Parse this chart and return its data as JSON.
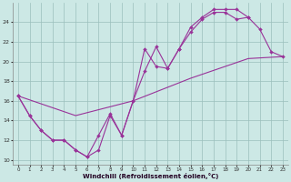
{
  "xlabel": "Windchill (Refroidissement éolien,°C)",
  "bg_color": "#cce8e5",
  "grid_color": "#9bbfbc",
  "line_color": "#993399",
  "xlim": [
    -0.5,
    23.5
  ],
  "ylim": [
    9.5,
    26.0
  ],
  "xticks": [
    0,
    1,
    2,
    3,
    4,
    5,
    6,
    7,
    8,
    9,
    10,
    11,
    12,
    13,
    14,
    15,
    16,
    17,
    18,
    19,
    20,
    21,
    22,
    23
  ],
  "yticks": [
    10,
    12,
    14,
    16,
    18,
    20,
    22,
    24
  ],
  "curve1_x": [
    0,
    1,
    2,
    3,
    4,
    5,
    6,
    7,
    8,
    9,
    10,
    11,
    12,
    13,
    14,
    15,
    16,
    17,
    18,
    19,
    20,
    21,
    22,
    23
  ],
  "curve1_y": [
    16.5,
    14.5,
    13.0,
    12.0,
    12.0,
    11.0,
    10.3,
    12.5,
    14.7,
    12.5,
    16.0,
    21.3,
    19.5,
    19.3,
    21.3,
    23.5,
    24.5,
    25.3,
    25.3,
    25.3,
    24.5,
    null,
    null,
    null
  ],
  "curve2_x": [
    0,
    1,
    2,
    3,
    4,
    5,
    6,
    7,
    8,
    9,
    10,
    11,
    12,
    13,
    14,
    15,
    16,
    17,
    18,
    19,
    20,
    21,
    22,
    23
  ],
  "curve2_y": [
    16.5,
    14.5,
    13.0,
    12.0,
    12.0,
    11.0,
    10.3,
    11.0,
    14.5,
    12.5,
    16.0,
    19.0,
    21.5,
    19.3,
    21.3,
    23.0,
    24.3,
    25.0,
    25.0,
    24.3,
    24.5,
    23.3,
    21.0,
    20.5
  ],
  "curve3_x": [
    0,
    5,
    10,
    15,
    20,
    23
  ],
  "curve3_y": [
    16.5,
    14.5,
    16.0,
    18.3,
    20.3,
    20.5
  ]
}
